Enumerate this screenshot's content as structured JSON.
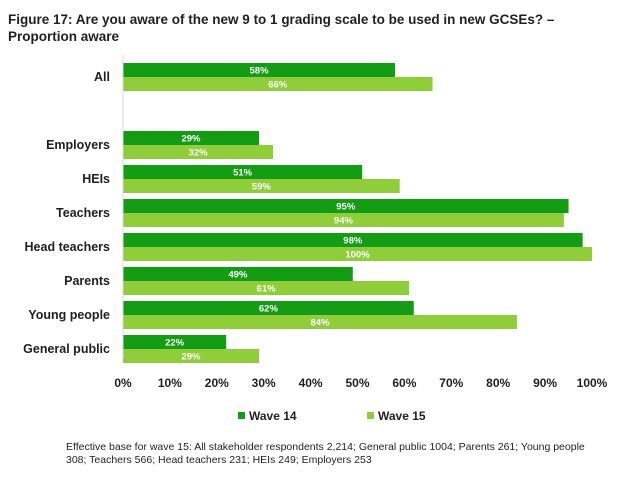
{
  "chart_data": {
    "type": "bar",
    "orientation": "horizontal",
    "title": "Figure 17: Are you aware of the new 9 to 1 grading scale to be used in new GCSEs? – Proportion aware",
    "categories": [
      "All",
      "Employers",
      "HEIs",
      "Teachers",
      "Head teachers",
      "Parents",
      "Young people",
      "General public"
    ],
    "series": [
      {
        "name": "Wave 14",
        "values": [
          58,
          29,
          51,
          95,
          98,
          49,
          62,
          22
        ],
        "color": "#149c14"
      },
      {
        "name": "Wave 15",
        "values": [
          66,
          32,
          59,
          94,
          100,
          61,
          84,
          29
        ],
        "color": "#8fce3a"
      }
    ],
    "xlim": [
      0,
      100
    ],
    "x_ticks": [
      "0%",
      "10%",
      "20%",
      "30%",
      "40%",
      "50%",
      "60%",
      "70%",
      "80%",
      "90%",
      "100%"
    ],
    "legend_position": "bottom",
    "grid": false,
    "footnote": "Effective base for wave 15: All stakeholder respondents 2,214; General public 1004; Parents 261; Young people 308; Teachers 566; Head teachers 231; HEIs 249; Employers 253"
  }
}
